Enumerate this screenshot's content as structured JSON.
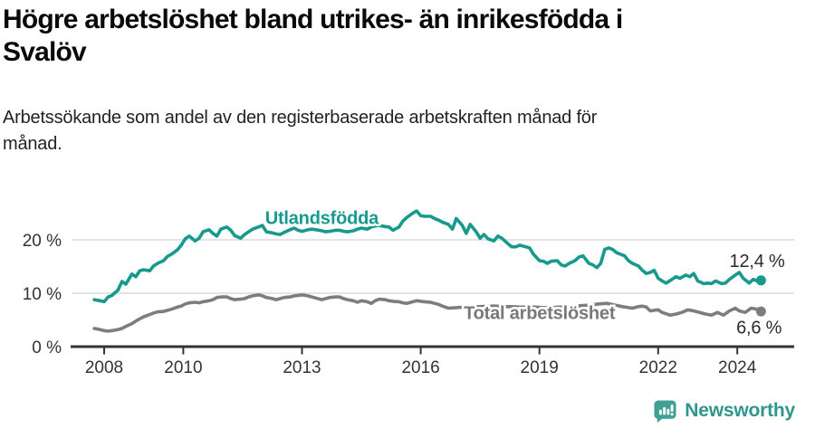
{
  "header": {
    "title_line1": "Högre arbetslöshet bland utrikes- än inrikesfödda i",
    "title_line2": "Svalöv",
    "subtitle_line1": "Arbetssökande som andel av den registerbaserade arbetskraften månad för",
    "subtitle_line2": "månad."
  },
  "chart_data": {
    "type": "line",
    "x_unit": "decimal_year",
    "y_unit": "percent",
    "xlim": [
      2007.6,
      2025.3
    ],
    "ylim": [
      0,
      27
    ],
    "grid": "horizontal",
    "axis_color": "#333333",
    "gridline_color": "#dcdcdc",
    "yticks": [
      {
        "value": 0,
        "label": "0 %"
      },
      {
        "value": 10,
        "label": "10 %"
      },
      {
        "value": 20,
        "label": "20 %"
      }
    ],
    "xticks": [
      {
        "value": 2008,
        "label": "2008"
      },
      {
        "value": 2010,
        "label": "2010"
      },
      {
        "value": 2013,
        "label": "2013"
      },
      {
        "value": 2016,
        "label": "2016"
      },
      {
        "value": 2019,
        "label": "2019"
      },
      {
        "value": 2022,
        "label": "2022"
      },
      {
        "value": 2024,
        "label": "2024"
      }
    ],
    "series": [
      {
        "name": "Utlandsfödda",
        "color": "#17998D",
        "end_value": 12.4,
        "end_label": "12,4 %",
        "points": [
          [
            2007.75,
            8.8
          ],
          [
            2007.9,
            8.6
          ],
          [
            2008.0,
            8.4
          ],
          [
            2008.1,
            9.3
          ],
          [
            2008.2,
            9.6
          ],
          [
            2008.35,
            10.6
          ],
          [
            2008.45,
            12.2
          ],
          [
            2008.55,
            11.7
          ],
          [
            2008.7,
            13.6
          ],
          [
            2008.8,
            13.1
          ],
          [
            2008.9,
            14.2
          ],
          [
            2009.0,
            14.4
          ],
          [
            2009.15,
            14.2
          ],
          [
            2009.25,
            15.1
          ],
          [
            2009.35,
            15.6
          ],
          [
            2009.5,
            16.1
          ],
          [
            2009.6,
            16.9
          ],
          [
            2009.7,
            17.3
          ],
          [
            2009.85,
            18.1
          ],
          [
            2009.95,
            19.0
          ],
          [
            2010.05,
            20.2
          ],
          [
            2010.15,
            20.7
          ],
          [
            2010.3,
            19.8
          ],
          [
            2010.4,
            20.3
          ],
          [
            2010.5,
            21.5
          ],
          [
            2010.65,
            21.9
          ],
          [
            2010.75,
            21.2
          ],
          [
            2010.85,
            20.7
          ],
          [
            2010.95,
            22.0
          ],
          [
            2011.1,
            22.4
          ],
          [
            2011.2,
            21.8
          ],
          [
            2011.3,
            20.8
          ],
          [
            2011.45,
            20.3
          ],
          [
            2011.55,
            21.0
          ],
          [
            2011.65,
            21.5
          ],
          [
            2011.75,
            22.0
          ],
          [
            2011.9,
            22.4
          ],
          [
            2012.0,
            22.7
          ],
          [
            2012.1,
            21.5
          ],
          [
            2012.25,
            21.3
          ],
          [
            2012.35,
            21.1
          ],
          [
            2012.45,
            21.0
          ],
          [
            2012.55,
            21.4
          ],
          [
            2012.7,
            21.9
          ],
          [
            2012.8,
            22.2
          ],
          [
            2012.9,
            21.8
          ],
          [
            2013.0,
            21.6
          ],
          [
            2013.15,
            21.9
          ],
          [
            2013.25,
            22.0
          ],
          [
            2013.35,
            21.9
          ],
          [
            2013.5,
            21.7
          ],
          [
            2013.6,
            21.5
          ],
          [
            2013.7,
            21.6
          ],
          [
            2013.85,
            21.8
          ],
          [
            2013.95,
            21.8
          ],
          [
            2014.05,
            21.6
          ],
          [
            2014.15,
            21.5
          ],
          [
            2014.3,
            21.7
          ],
          [
            2014.4,
            22.0
          ],
          [
            2014.5,
            22.2
          ],
          [
            2014.65,
            22.0
          ],
          [
            2014.75,
            22.4
          ],
          [
            2014.85,
            22.6
          ],
          [
            2014.95,
            22.7
          ],
          [
            2015.1,
            22.5
          ],
          [
            2015.2,
            22.4
          ],
          [
            2015.3,
            21.8
          ],
          [
            2015.45,
            22.4
          ],
          [
            2015.55,
            23.5
          ],
          [
            2015.65,
            24.2
          ],
          [
            2015.8,
            25.0
          ],
          [
            2015.9,
            25.4
          ],
          [
            2016.0,
            24.5
          ],
          [
            2016.1,
            24.4
          ],
          [
            2016.25,
            24.4
          ],
          [
            2016.35,
            24.0
          ],
          [
            2016.45,
            23.7
          ],
          [
            2016.55,
            23.3
          ],
          [
            2016.7,
            22.9
          ],
          [
            2016.8,
            22.0
          ],
          [
            2016.9,
            24.0
          ],
          [
            2017.05,
            22.7
          ],
          [
            2017.15,
            21.2
          ],
          [
            2017.25,
            22.9
          ],
          [
            2017.4,
            21.5
          ],
          [
            2017.5,
            20.3
          ],
          [
            2017.6,
            21.0
          ],
          [
            2017.7,
            20.2
          ],
          [
            2017.85,
            19.8
          ],
          [
            2017.95,
            20.7
          ],
          [
            2018.05,
            20.3
          ],
          [
            2018.2,
            19.3
          ],
          [
            2018.3,
            18.7
          ],
          [
            2018.4,
            18.7
          ],
          [
            2018.5,
            19.0
          ],
          [
            2018.65,
            18.7
          ],
          [
            2018.75,
            18.5
          ],
          [
            2018.85,
            17.3
          ],
          [
            2019.0,
            16.1
          ],
          [
            2019.1,
            16.0
          ],
          [
            2019.2,
            15.6
          ],
          [
            2019.3,
            16.0
          ],
          [
            2019.45,
            16.1
          ],
          [
            2019.55,
            15.3
          ],
          [
            2019.65,
            15.1
          ],
          [
            2019.75,
            15.6
          ],
          [
            2019.9,
            16.1
          ],
          [
            2020.0,
            16.8
          ],
          [
            2020.1,
            17.0
          ],
          [
            2020.25,
            15.6
          ],
          [
            2020.35,
            15.3
          ],
          [
            2020.45,
            14.8
          ],
          [
            2020.55,
            15.6
          ],
          [
            2020.65,
            18.2
          ],
          [
            2020.75,
            18.5
          ],
          [
            2020.85,
            18.2
          ],
          [
            2020.95,
            17.6
          ],
          [
            2021.05,
            17.3
          ],
          [
            2021.15,
            17.0
          ],
          [
            2021.25,
            16.1
          ],
          [
            2021.35,
            15.6
          ],
          [
            2021.5,
            15.1
          ],
          [
            2021.6,
            14.3
          ],
          [
            2021.7,
            13.7
          ],
          [
            2021.8,
            13.9
          ],
          [
            2021.9,
            14.3
          ],
          [
            2022.0,
            12.8
          ],
          [
            2022.1,
            12.3
          ],
          [
            2022.2,
            11.9
          ],
          [
            2022.35,
            12.6
          ],
          [
            2022.45,
            13.1
          ],
          [
            2022.55,
            12.8
          ],
          [
            2022.7,
            13.4
          ],
          [
            2022.8,
            13.1
          ],
          [
            2022.9,
            13.7
          ],
          [
            2023.0,
            12.3
          ],
          [
            2023.15,
            11.8
          ],
          [
            2023.25,
            11.9
          ],
          [
            2023.35,
            11.8
          ],
          [
            2023.45,
            12.3
          ],
          [
            2023.6,
            11.8
          ],
          [
            2023.7,
            11.9
          ],
          [
            2023.8,
            12.6
          ],
          [
            2023.95,
            13.4
          ],
          [
            2024.05,
            13.9
          ],
          [
            2024.15,
            12.8
          ],
          [
            2024.3,
            11.9
          ],
          [
            2024.4,
            12.6
          ],
          [
            2024.5,
            12.3
          ],
          [
            2024.6,
            12.4
          ]
        ]
      },
      {
        "name": "Total arbetslöshet",
        "color": "#7D7D7D",
        "end_value": 6.6,
        "end_label": "6,6 %",
        "points": [
          [
            2007.75,
            3.4
          ],
          [
            2007.9,
            3.2
          ],
          [
            2008.0,
            3.0
          ],
          [
            2008.1,
            2.9
          ],
          [
            2008.2,
            3.0
          ],
          [
            2008.35,
            3.2
          ],
          [
            2008.45,
            3.4
          ],
          [
            2008.55,
            3.8
          ],
          [
            2008.7,
            4.3
          ],
          [
            2008.8,
            4.8
          ],
          [
            2008.9,
            5.2
          ],
          [
            2009.0,
            5.6
          ],
          [
            2009.15,
            6.0
          ],
          [
            2009.25,
            6.3
          ],
          [
            2009.35,
            6.5
          ],
          [
            2009.5,
            6.6
          ],
          [
            2009.6,
            6.8
          ],
          [
            2009.7,
            7.0
          ],
          [
            2009.85,
            7.4
          ],
          [
            2009.95,
            7.6
          ],
          [
            2010.05,
            8.0
          ],
          [
            2010.15,
            8.2
          ],
          [
            2010.3,
            8.3
          ],
          [
            2010.4,
            8.2
          ],
          [
            2010.5,
            8.4
          ],
          [
            2010.65,
            8.6
          ],
          [
            2010.75,
            8.8
          ],
          [
            2010.85,
            9.2
          ],
          [
            2010.95,
            9.3
          ],
          [
            2011.1,
            9.3
          ],
          [
            2011.2,
            9.0
          ],
          [
            2011.3,
            8.8
          ],
          [
            2011.45,
            8.9
          ],
          [
            2011.55,
            9.0
          ],
          [
            2011.65,
            9.3
          ],
          [
            2011.75,
            9.5
          ],
          [
            2011.9,
            9.7
          ],
          [
            2012.0,
            9.5
          ],
          [
            2012.1,
            9.2
          ],
          [
            2012.25,
            9.0
          ],
          [
            2012.35,
            8.8
          ],
          [
            2012.45,
            9.0
          ],
          [
            2012.55,
            9.2
          ],
          [
            2012.7,
            9.3
          ],
          [
            2012.8,
            9.5
          ],
          [
            2012.9,
            9.6
          ],
          [
            2013.0,
            9.7
          ],
          [
            2013.15,
            9.5
          ],
          [
            2013.25,
            9.3
          ],
          [
            2013.35,
            9.1
          ],
          [
            2013.5,
            8.8
          ],
          [
            2013.6,
            9.0
          ],
          [
            2013.7,
            9.2
          ],
          [
            2013.85,
            9.3
          ],
          [
            2013.95,
            9.3
          ],
          [
            2014.05,
            9.0
          ],
          [
            2014.15,
            8.8
          ],
          [
            2014.3,
            8.6
          ],
          [
            2014.4,
            8.3
          ],
          [
            2014.5,
            8.6
          ],
          [
            2014.65,
            8.4
          ],
          [
            2014.75,
            8.1
          ],
          [
            2014.85,
            8.6
          ],
          [
            2014.95,
            8.9
          ],
          [
            2015.1,
            8.8
          ],
          [
            2015.2,
            8.6
          ],
          [
            2015.3,
            8.5
          ],
          [
            2015.45,
            8.4
          ],
          [
            2015.55,
            8.2
          ],
          [
            2015.65,
            8.1
          ],
          [
            2015.8,
            8.4
          ],
          [
            2015.9,
            8.6
          ],
          [
            2016.0,
            8.5
          ],
          [
            2016.1,
            8.4
          ],
          [
            2016.25,
            8.3
          ],
          [
            2016.35,
            8.1
          ],
          [
            2016.45,
            7.9
          ],
          [
            2016.55,
            7.6
          ],
          [
            2016.7,
            7.2
          ],
          [
            2016.9,
            7.3
          ],
          [
            2017.1,
            7.4
          ],
          [
            2017.3,
            7.5
          ],
          [
            2017.5,
            7.5
          ],
          [
            2017.7,
            7.6
          ],
          [
            2017.9,
            7.6
          ],
          [
            2018.1,
            7.5
          ],
          [
            2018.3,
            7.5
          ],
          [
            2018.5,
            7.4
          ],
          [
            2018.7,
            7.4
          ],
          [
            2018.9,
            7.4
          ],
          [
            2019.1,
            7.3
          ],
          [
            2019.3,
            7.3
          ],
          [
            2019.5,
            7.4
          ],
          [
            2019.7,
            7.5
          ],
          [
            2019.9,
            7.6
          ],
          [
            2020.1,
            7.7
          ],
          [
            2020.3,
            7.8
          ],
          [
            2020.5,
            8.0
          ],
          [
            2020.7,
            8.1
          ],
          [
            2020.9,
            7.8
          ],
          [
            2021.1,
            7.5
          ],
          [
            2021.25,
            7.3
          ],
          [
            2021.35,
            7.2
          ],
          [
            2021.5,
            7.5
          ],
          [
            2021.6,
            7.6
          ],
          [
            2021.7,
            7.4
          ],
          [
            2021.8,
            6.7
          ],
          [
            2021.9,
            6.8
          ],
          [
            2022.0,
            6.9
          ],
          [
            2022.1,
            6.4
          ],
          [
            2022.3,
            5.9
          ],
          [
            2022.45,
            6.1
          ],
          [
            2022.6,
            6.4
          ],
          [
            2022.75,
            6.9
          ],
          [
            2022.9,
            6.7
          ],
          [
            2023.05,
            6.4
          ],
          [
            2023.2,
            6.1
          ],
          [
            2023.35,
            5.9
          ],
          [
            2023.5,
            6.4
          ],
          [
            2023.65,
            5.9
          ],
          [
            2023.8,
            6.7
          ],
          [
            2023.95,
            7.2
          ],
          [
            2024.05,
            6.7
          ],
          [
            2024.2,
            6.4
          ],
          [
            2024.35,
            7.2
          ],
          [
            2024.5,
            7.0
          ],
          [
            2024.6,
            6.6
          ]
        ]
      }
    ],
    "annotations": [
      {
        "name": "series-label-utlandsfodda",
        "text": "Utlandsfödda",
        "x": 2013.5,
        "y": 23.0,
        "color": "#17998D",
        "bold": true,
        "anchor": "middle"
      },
      {
        "name": "series-label-total",
        "text": "Total arbetslöshet",
        "x": 2019.0,
        "y": 5.2,
        "color": "#787878",
        "bold": true,
        "anchor": "middle"
      },
      {
        "name": "endpoint-label-utlandsfodda",
        "text": "12,4 %",
        "x": 2024.5,
        "y": 14.9,
        "color": "#2B2B2B",
        "bold": false,
        "anchor": "middle"
      },
      {
        "name": "endpoint-label-total",
        "text": "6,6 %",
        "x": 2024.55,
        "y": 2.5,
        "color": "#2B2B2B",
        "bold": false,
        "anchor": "middle"
      }
    ]
  },
  "footer": {
    "brand": "Newsworthy",
    "logo_icon": "newsworthy-speech-bubble-bar-chart-icon",
    "brand_color": "#2F968C",
    "icon_color": "#41A096"
  }
}
